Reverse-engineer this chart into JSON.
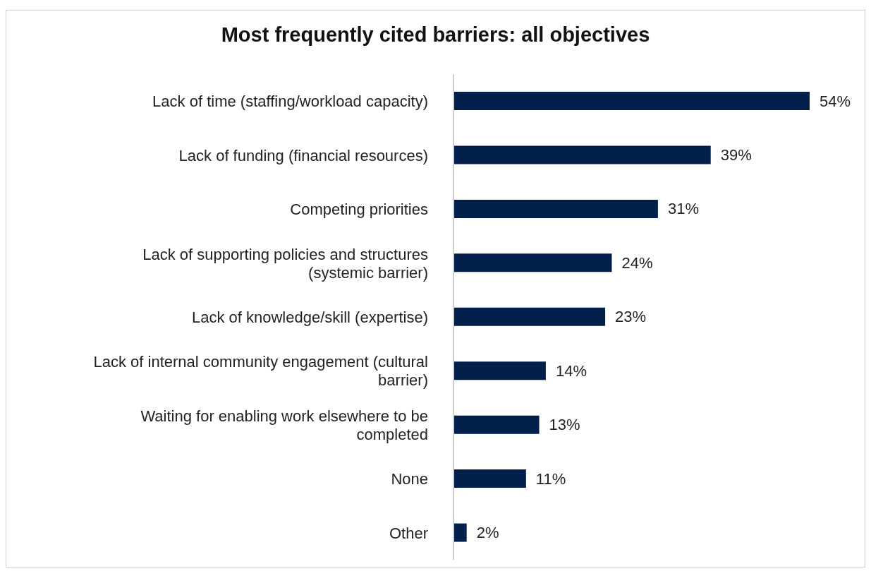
{
  "chart_data": {
    "type": "bar",
    "orientation": "horizontal",
    "title": "Most frequently cited barriers: all objectives",
    "categories": [
      "Lack of time (staffing/workload capacity)",
      "Lack of funding (financial resources)",
      "Competing priorities",
      "Lack of supporting policies and structures (systemic barrier)",
      "Lack of knowledge/skill (expertise)",
      "Lack of internal community engagement (cultural barrier)",
      "Waiting for enabling work elsewhere to be completed",
      "None",
      "Other"
    ],
    "values": [
      54,
      39,
      31,
      24,
      23,
      14,
      13,
      11,
      2
    ],
    "value_labels": [
      "54%",
      "39%",
      "31%",
      "24%",
      "23%",
      "14%",
      "13%",
      "11%",
      "2%"
    ],
    "color": "#03204c",
    "tick_labels": "y",
    "grid": false,
    "legend": false
  }
}
